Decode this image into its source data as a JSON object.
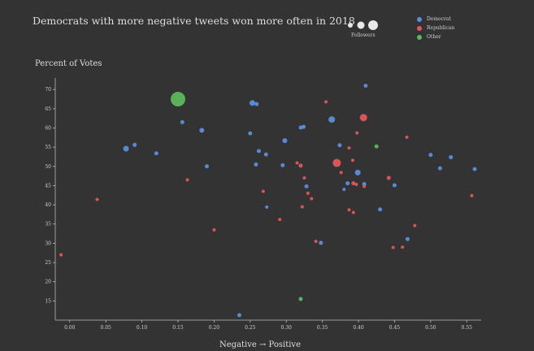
{
  "chart_data": {
    "type": "scatter",
    "title": "Democrats with more negative tweets won more often in 2018",
    "ylabel": "Percent of Votes",
    "xlabel": "Negative → Positive",
    "xlim": [
      -0.02,
      0.57
    ],
    "ylim": [
      10,
      73
    ],
    "x_ticks": [
      "0.00",
      "0.05",
      "0.10",
      "0.15",
      "0.20",
      "0.25",
      "0.30",
      "0.35",
      "0.40",
      "0.45",
      "0.50",
      "0.55"
    ],
    "y_ticks": [
      "15",
      "20",
      "25",
      "30",
      "35",
      "40",
      "45",
      "50",
      "55",
      "60",
      "65",
      "70"
    ],
    "size_legend_label": "Followers",
    "legend": [
      {
        "name": "Democrat",
        "color": "#5b8ee0"
      },
      {
        "name": "Republican",
        "color": "#e0575a"
      },
      {
        "name": "Other",
        "color": "#5cb85c"
      }
    ],
    "points": [
      {
        "x": 0.15,
        "y": 67.5,
        "party": "Other",
        "r": 9
      },
      {
        "x": 0.253,
        "y": 66.5,
        "party": "Democrat",
        "r": 3.5
      },
      {
        "x": 0.259,
        "y": 66.2,
        "party": "Democrat",
        "r": 2.5
      },
      {
        "x": 0.41,
        "y": 71.0,
        "party": "Democrat",
        "r": 2.5
      },
      {
        "x": 0.363,
        "y": 62.2,
        "party": "Democrat",
        "r": 4
      },
      {
        "x": 0.407,
        "y": 62.7,
        "party": "Republican",
        "r": 4.5
      },
      {
        "x": 0.355,
        "y": 66.8,
        "party": "Republican",
        "r": 2
      },
      {
        "x": 0.156,
        "y": 61.5,
        "party": "Democrat",
        "r": 2.5
      },
      {
        "x": 0.183,
        "y": 59.4,
        "party": "Democrat",
        "r": 3
      },
      {
        "x": 0.25,
        "y": 58.6,
        "party": "Democrat",
        "r": 2.5
      },
      {
        "x": 0.32,
        "y": 60.1,
        "party": "Democrat",
        "r": 2.5
      },
      {
        "x": 0.324,
        "y": 60.3,
        "party": "Democrat",
        "r": 2.5
      },
      {
        "x": 0.398,
        "y": 58.7,
        "party": "Republican",
        "r": 2
      },
      {
        "x": 0.078,
        "y": 54.6,
        "party": "Democrat",
        "r": 3.5
      },
      {
        "x": 0.09,
        "y": 55.6,
        "party": "Democrat",
        "r": 2.5
      },
      {
        "x": 0.12,
        "y": 53.4,
        "party": "Democrat",
        "r": 2.5
      },
      {
        "x": 0.262,
        "y": 54.0,
        "party": "Democrat",
        "r": 2.5
      },
      {
        "x": 0.298,
        "y": 56.7,
        "party": "Democrat",
        "r": 3
      },
      {
        "x": 0.374,
        "y": 55.5,
        "party": "Democrat",
        "r": 2.5
      },
      {
        "x": 0.425,
        "y": 55.2,
        "party": "Other",
        "r": 2.5
      },
      {
        "x": 0.387,
        "y": 54.8,
        "party": "Republican",
        "r": 2
      },
      {
        "x": 0.467,
        "y": 57.6,
        "party": "Republican",
        "r": 2
      },
      {
        "x": 0.5,
        "y": 53.0,
        "party": "Democrat",
        "r": 2.5
      },
      {
        "x": 0.528,
        "y": 52.4,
        "party": "Democrat",
        "r": 2.5
      },
      {
        "x": 0.19,
        "y": 50.0,
        "party": "Democrat",
        "r": 2.5
      },
      {
        "x": 0.258,
        "y": 50.5,
        "party": "Democrat",
        "r": 2.5
      },
      {
        "x": 0.272,
        "y": 53.1,
        "party": "Democrat",
        "r": 2.5
      },
      {
        "x": 0.295,
        "y": 50.3,
        "party": "Democrat",
        "r": 2.5
      },
      {
        "x": 0.315,
        "y": 50.9,
        "party": "Republican",
        "r": 2
      },
      {
        "x": 0.32,
        "y": 50.2,
        "party": "Republican",
        "r": 2.5
      },
      {
        "x": 0.37,
        "y": 50.9,
        "party": "Republican",
        "r": 5
      },
      {
        "x": 0.392,
        "y": 51.6,
        "party": "Republican",
        "r": 2
      },
      {
        "x": 0.399,
        "y": 48.4,
        "party": "Democrat",
        "r": 3.5
      },
      {
        "x": 0.376,
        "y": 48.4,
        "party": "Republican",
        "r": 2
      },
      {
        "x": 0.513,
        "y": 49.5,
        "party": "Democrat",
        "r": 2.5
      },
      {
        "x": 0.561,
        "y": 49.3,
        "party": "Democrat",
        "r": 2.5
      },
      {
        "x": 0.163,
        "y": 46.5,
        "party": "Republican",
        "r": 2
      },
      {
        "x": 0.325,
        "y": 47.0,
        "party": "Republican",
        "r": 2
      },
      {
        "x": 0.328,
        "y": 44.8,
        "party": "Democrat",
        "r": 2.5
      },
      {
        "x": 0.385,
        "y": 45.6,
        "party": "Democrat",
        "r": 2.5
      },
      {
        "x": 0.393,
        "y": 45.6,
        "party": "Republican",
        "r": 2.5
      },
      {
        "x": 0.397,
        "y": 45.3,
        "party": "Republican",
        "r": 2
      },
      {
        "x": 0.408,
        "y": 45.4,
        "party": "Democrat",
        "r": 2.5
      },
      {
        "x": 0.408,
        "y": 44.8,
        "party": "Republican",
        "r": 2
      },
      {
        "x": 0.442,
        "y": 47.0,
        "party": "Republican",
        "r": 2.5
      },
      {
        "x": 0.45,
        "y": 45.1,
        "party": "Democrat",
        "r": 2.5
      },
      {
        "x": 0.38,
        "y": 44.0,
        "party": "Democrat",
        "r": 2
      },
      {
        "x": 0.268,
        "y": 43.5,
        "party": "Republican",
        "r": 2
      },
      {
        "x": 0.33,
        "y": 43.0,
        "party": "Republican",
        "r": 2
      },
      {
        "x": 0.335,
        "y": 41.6,
        "party": "Republican",
        "r": 2
      },
      {
        "x": 0.557,
        "y": 42.4,
        "party": "Republican",
        "r": 2
      },
      {
        "x": 0.038,
        "y": 41.4,
        "party": "Republican",
        "r": 2
      },
      {
        "x": 0.273,
        "y": 39.4,
        "party": "Democrat",
        "r": 2
      },
      {
        "x": 0.322,
        "y": 39.5,
        "party": "Republican",
        "r": 2
      },
      {
        "x": 0.387,
        "y": 38.7,
        "party": "Republican",
        "r": 2
      },
      {
        "x": 0.393,
        "y": 38.0,
        "party": "Republican",
        "r": 2
      },
      {
        "x": 0.43,
        "y": 38.8,
        "party": "Democrat",
        "r": 2.5
      },
      {
        "x": 0.291,
        "y": 36.2,
        "party": "Republican",
        "r": 2
      },
      {
        "x": 0.478,
        "y": 34.6,
        "party": "Republican",
        "r": 2
      },
      {
        "x": 0.2,
        "y": 33.5,
        "party": "Republican",
        "r": 2
      },
      {
        "x": 0.341,
        "y": 30.5,
        "party": "Republican",
        "r": 2
      },
      {
        "x": 0.348,
        "y": 30.1,
        "party": "Democrat",
        "r": 2.5
      },
      {
        "x": 0.468,
        "y": 31.1,
        "party": "Democrat",
        "r": 2.5
      },
      {
        "x": 0.448,
        "y": 28.9,
        "party": "Republican",
        "r": 2
      },
      {
        "x": 0.461,
        "y": 29.0,
        "party": "Republican",
        "r": 2
      },
      {
        "x": -0.012,
        "y": 27.0,
        "party": "Republican",
        "r": 2
      },
      {
        "x": 0.32,
        "y": 15.5,
        "party": "Other",
        "r": 2.5
      },
      {
        "x": 0.235,
        "y": 11.3,
        "party": "Democrat",
        "r": 2.5
      }
    ]
  }
}
